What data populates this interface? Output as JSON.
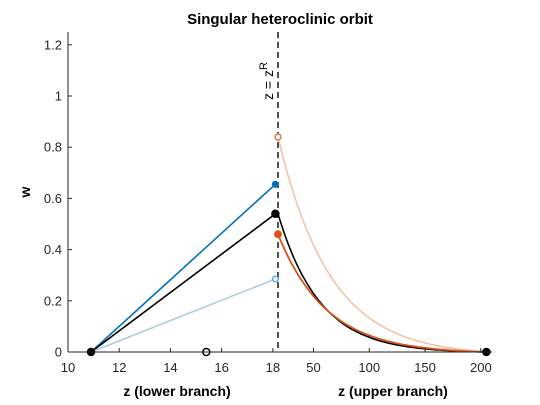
{
  "chart_data": {
    "type": "line",
    "title": "Singular heteroclinic orbit",
    "ylabel": "w",
    "ylim": [
      0,
      1.25
    ],
    "yticks": [
      0,
      0.2,
      0.4,
      0.6,
      0.8,
      1,
      1.2
    ],
    "ytick_labels": [
      "0",
      "0.2",
      "0.4",
      "0.6",
      "0.8",
      "1",
      "1.2"
    ],
    "grid": false,
    "legend": "none",
    "annotation": "z = z",
    "annotation_superscript": "R",
    "lower": {
      "xlabel": "z (lower branch)",
      "xlim": [
        10,
        18.2
      ],
      "xticks": [
        10,
        12,
        14,
        16,
        18
      ],
      "xtick_labels": [
        "10",
        "12",
        "14",
        "16",
        "18"
      ]
    },
    "upper": {
      "xlabel": "z (upper branch)",
      "xlim": [
        18.2,
        210
      ],
      "xticks": [
        50,
        100,
        150,
        200
      ],
      "xtick_labels": [
        "50",
        "100",
        "150",
        "200"
      ]
    },
    "boundary_z": 18.2,
    "series": [
      {
        "color": "#0072BD",
        "width": 1.6,
        "lower": [
          [
            10.9,
            0
          ],
          [
            18.1,
            0.655
          ]
        ],
        "upper": []
      },
      {
        "color": "#000000",
        "width": 1.6,
        "lower": [
          [
            10.9,
            0
          ],
          [
            18.1,
            0.54
          ]
        ],
        "upper": {
          "start": 0.54,
          "end": 0,
          "x0": 18.2,
          "x1": 205,
          "shape": "decay",
          "k": 5
        }
      },
      {
        "color": "#A7CDE6",
        "width": 1.6,
        "lower": [
          [
            10.9,
            0
          ],
          [
            18.1,
            0.285
          ]
        ],
        "upper": []
      },
      {
        "color": "#F4C2A9",
        "width": 1.6,
        "lower": [],
        "upper": {
          "start": 0.84,
          "end": 0,
          "x0": 18.2,
          "x1": 205,
          "shape": "decay",
          "k": 4
        }
      },
      {
        "color": "#D95319",
        "width": 1.8,
        "lower": [],
        "upper": {
          "start": 0.46,
          "end": 0,
          "x0": 18.2,
          "x1": 205,
          "shape": "decay",
          "k": 4.3
        }
      }
    ],
    "markers": [
      {
        "branch": "lower",
        "x": 10.9,
        "y": 0,
        "style": "filled",
        "color": "#000000",
        "r": 3.5
      },
      {
        "branch": "lower",
        "x": 15.4,
        "y": 0,
        "style": "open",
        "color": "#000000",
        "r": 3.5
      },
      {
        "branch": "lower",
        "x": 18.1,
        "y": 0.655,
        "style": "filled",
        "color": "#0072BD",
        "r": 2.8
      },
      {
        "branch": "lower",
        "x": 18.1,
        "y": 0.54,
        "style": "filled",
        "color": "#000000",
        "r": 3.5
      },
      {
        "branch": "lower",
        "x": 18.1,
        "y": 0.285,
        "style": "open",
        "color": "#5FA9DE",
        "r": 2.8
      },
      {
        "branch": "upper",
        "x": 18.2,
        "y": 0.84,
        "style": "open",
        "color": "#E07A50",
        "r": 3
      },
      {
        "branch": "upper",
        "x": 18.2,
        "y": 0.46,
        "style": "filled",
        "color": "#D95319",
        "r": 3.2
      },
      {
        "branch": "upper",
        "x": 205,
        "y": 0,
        "style": "filled",
        "color": "#000000",
        "r": 3.5
      }
    ]
  }
}
